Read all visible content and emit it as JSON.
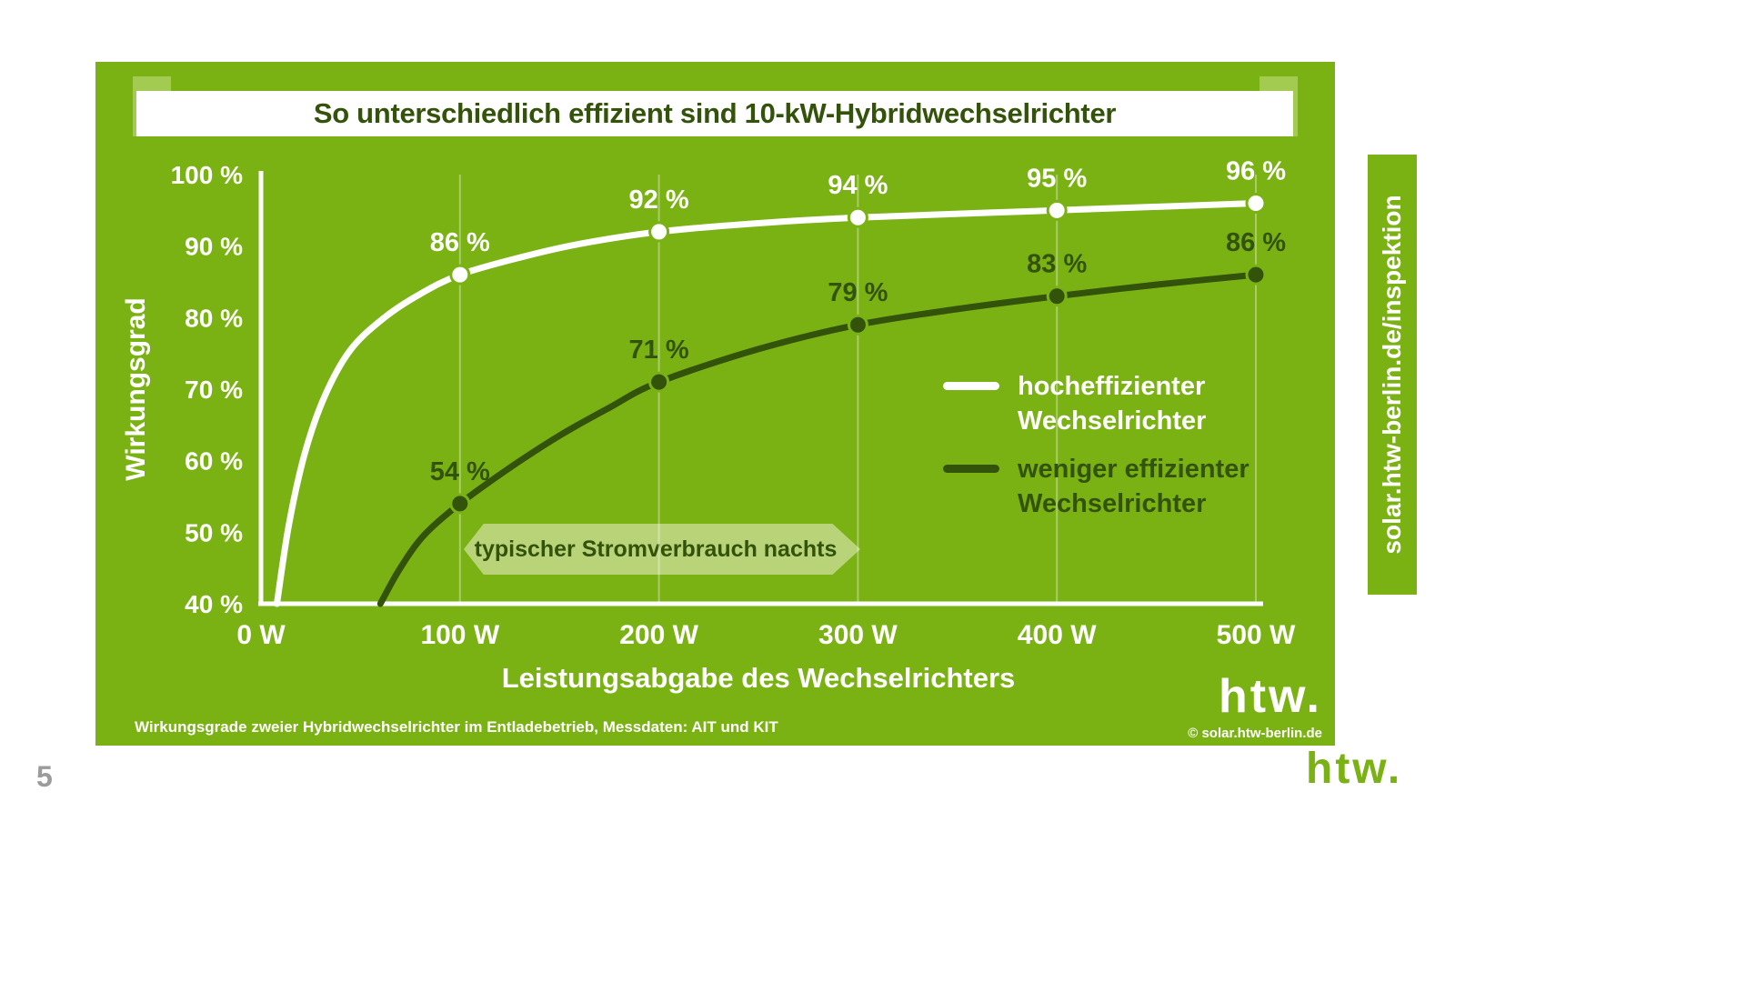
{
  "colors": {
    "panel_green": "#7ab214",
    "dark_green": "#33520a",
    "light_green": "#a3cb52",
    "banner_green": "#b9d478",
    "white": "#ffffff",
    "page_number_gray": "#9b9b9b"
  },
  "side_tab": {
    "label": "solar.htw-berlin.de/inspektion"
  },
  "footer": {
    "page_number": "5",
    "logo_text": "htw."
  },
  "panel_footer": {
    "footnote": "Wirkungsgrade zweier Hybridwechselrichter im Entladebetrieb, Messdaten: AIT und KIT",
    "logo_text": "htw.",
    "copyright": "© solar.htw-berlin.de"
  },
  "chart_data": {
    "type": "line",
    "title": "So unterschiedlich effizient sind 10-kW-Hybridwechselrichter",
    "xlabel": "Leistungsabgabe des Wechselrichters",
    "ylabel": "Wirkungsgrad",
    "xlim": [
      0,
      500
    ],
    "ylim": [
      40,
      100
    ],
    "x_ticks": [
      "0 W",
      "100 W",
      "200 W",
      "300 W",
      "400 W",
      "500 W"
    ],
    "y_ticks": [
      "100 %",
      "90 %",
      "80 %",
      "70 %",
      "60 %",
      "50 %",
      "40 %"
    ],
    "grid": "vertical-only",
    "legend_position": "middle-right",
    "annotation": "typischer Stromverbrauch nachts",
    "series": [
      {
        "name": "hocheffizienter Wechselrichter",
        "color": "#ffffff",
        "x": [
          100,
          200,
          300,
          400,
          500
        ],
        "values": [
          86,
          92,
          94,
          95,
          96
        ],
        "point_labels": [
          "86 %",
          "92 %",
          "94 %",
          "95 %",
          "96 %"
        ],
        "curve_points": [
          [
            8,
            40
          ],
          [
            14,
            51
          ],
          [
            22,
            61
          ],
          [
            32,
            69
          ],
          [
            45,
            75.5
          ],
          [
            62,
            80
          ],
          [
            80,
            83.3
          ],
          [
            100,
            86
          ],
          [
            130,
            88.4
          ],
          [
            160,
            90.3
          ],
          [
            200,
            92
          ],
          [
            250,
            93.2
          ],
          [
            300,
            94
          ],
          [
            400,
            95
          ],
          [
            500,
            96
          ]
        ]
      },
      {
        "name": "weniger effizienter Wechselrichter",
        "color": "#33520a",
        "x": [
          100,
          200,
          300,
          400,
          500
        ],
        "values": [
          54,
          71,
          79,
          83,
          86
        ],
        "point_labels": [
          "54 %",
          "71 %",
          "79 %",
          "83 %",
          "86 %"
        ],
        "curve_points": [
          [
            60,
            40
          ],
          [
            70,
            45
          ],
          [
            82,
            49.6
          ],
          [
            100,
            54
          ],
          [
            125,
            59
          ],
          [
            150,
            63.5
          ],
          [
            175,
            67.4
          ],
          [
            200,
            71
          ],
          [
            250,
            75.6
          ],
          [
            300,
            79
          ],
          [
            350,
            81.2
          ],
          [
            400,
            83
          ],
          [
            450,
            84.6
          ],
          [
            500,
            86
          ]
        ]
      }
    ]
  }
}
